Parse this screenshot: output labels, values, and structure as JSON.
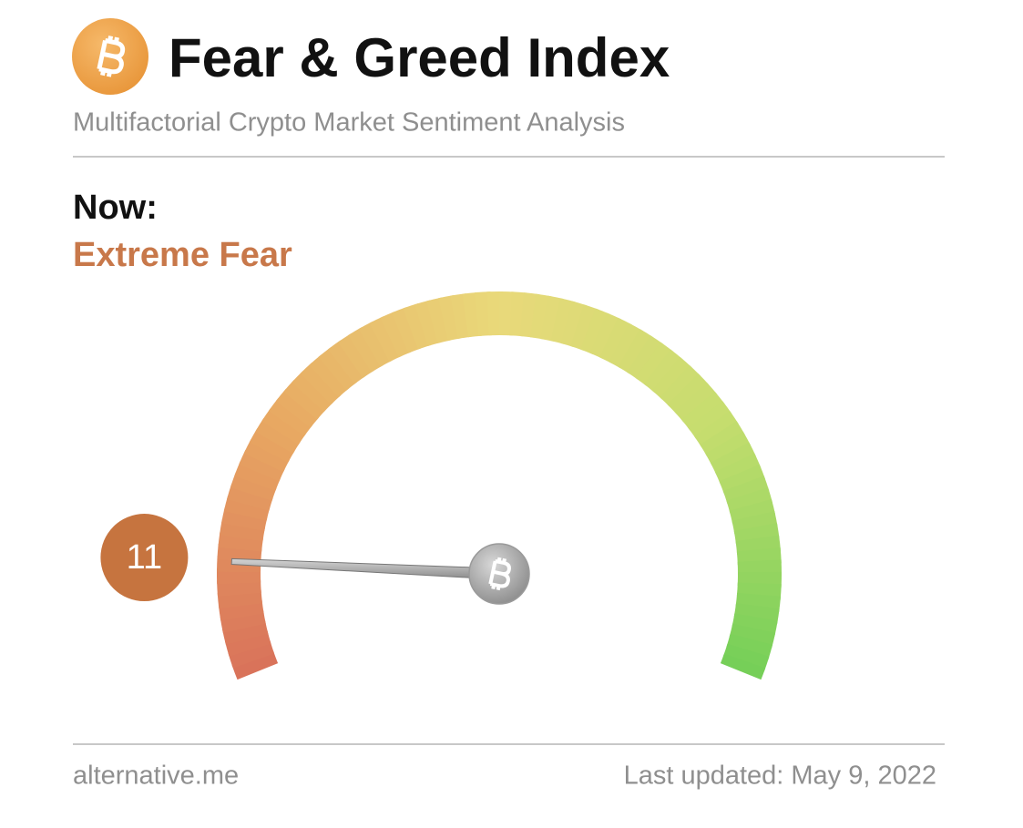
{
  "chart_data": {
    "type": "gauge",
    "title": "Fear & Greed Index",
    "subtitle": "Multifactorial Crypto Market Sentiment Analysis",
    "now_label": "Now:",
    "classification": "Extreme Fear",
    "value": 11,
    "range": [
      0,
      100
    ],
    "source": "alternative.me",
    "updated": "Last updated: May 9, 2022"
  }
}
